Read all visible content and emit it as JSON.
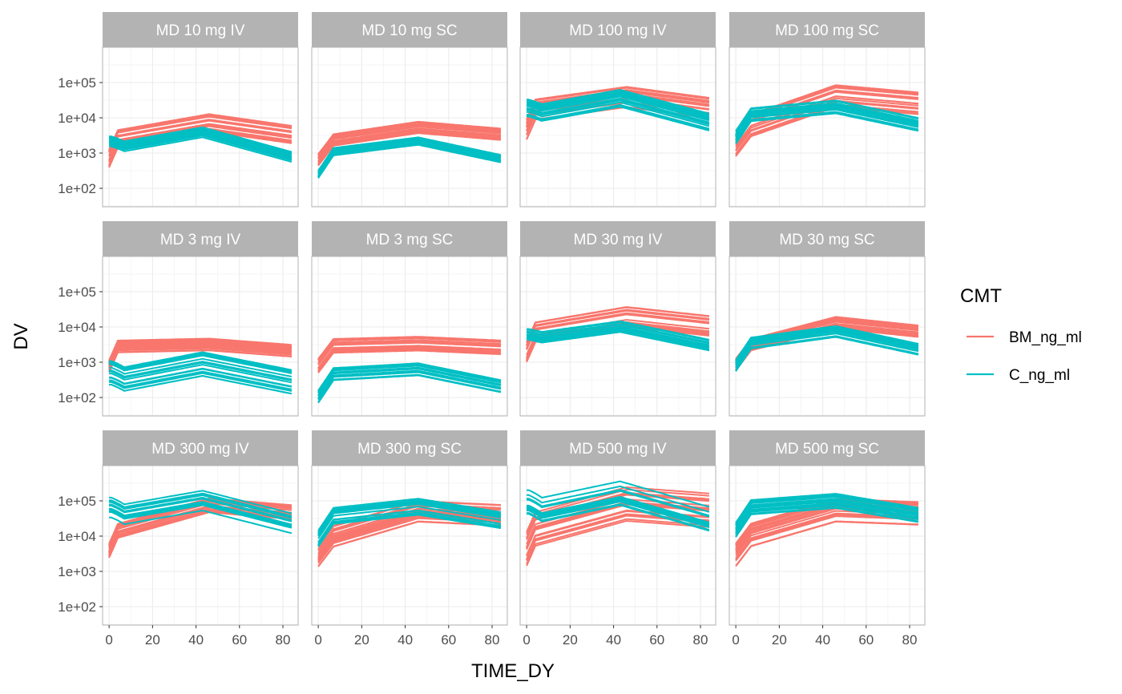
{
  "chart_data": {
    "type": "line",
    "facet_layout": {
      "rows": 3,
      "cols": 4
    },
    "xlabel": "TIME_DY",
    "ylabel": "DV",
    "x_ticks": [
      0,
      20,
      40,
      60,
      80
    ],
    "xlim": [
      -3,
      87
    ],
    "y_scale": "log10",
    "y_ticks": [
      100,
      1000,
      10000,
      100000
    ],
    "y_tick_labels": [
      "1e+02",
      "1e+03",
      "1e+04",
      "1e+05"
    ],
    "ylim": [
      30,
      1000000
    ],
    "grid": true,
    "legend": {
      "title": "CMT",
      "position": "right",
      "entries": [
        {
          "name": "BM_ng_ml",
          "color": "#F8766D"
        },
        {
          "name": "C_ng_ml",
          "color": "#00BFC4"
        }
      ]
    },
    "colors": {
      "BM_ng_ml": "#F8766D",
      "C_ng_ml": "#00BFC4",
      "strip": "#b3b3b3",
      "panel_border": "#b3b3b3",
      "grid": "#ebebeb"
    },
    "panels": [
      {
        "title": "MD 10 mg IV",
        "route": "IV",
        "series": [
          {
            "name": "BM_ng_ml",
            "start": 1200,
            "peak": 7500,
            "end": 3500,
            "low": 4000,
            "high": 14000,
            "n": 20
          },
          {
            "name": "C_ng_ml",
            "start": 2200,
            "trough": 1600,
            "peak": 4000,
            "end": 800,
            "low": 2800,
            "high": 5800,
            "n": 18
          }
        ]
      },
      {
        "title": "MD 10 mg SC",
        "route": "SC",
        "series": [
          {
            "name": "BM_ng_ml",
            "start": 1000,
            "peak": 5000,
            "end": 3200,
            "low": 3500,
            "high": 8000,
            "n": 20
          },
          {
            "name": "C_ng_ml",
            "start": 500,
            "trough": 900,
            "peak": 2200,
            "end": 700,
            "low": 1700,
            "high": 2800,
            "n": 18
          }
        ]
      },
      {
        "title": "MD 100 mg IV",
        "route": "IV",
        "series": [
          {
            "name": "BM_ng_ml",
            "start": 9000,
            "peak": 45000,
            "end": 22000,
            "low": 20000,
            "high": 80000,
            "n": 20
          },
          {
            "name": "C_ng_ml",
            "start": 20000,
            "trough": 15000,
            "peak": 38000,
            "end": 8000,
            "low": 20000,
            "high": 70000,
            "n": 18
          }
        ]
      },
      {
        "title": "MD 100 mg SC",
        "route": "SC",
        "series": [
          {
            "name": "BM_ng_ml",
            "start": 3000,
            "peak": 45000,
            "end": 28000,
            "low": 20000,
            "high": 90000,
            "n": 20
          },
          {
            "name": "C_ng_ml",
            "start": 6000,
            "trough": 9000,
            "peak": 22000,
            "end": 7000,
            "low": 12000,
            "high": 32000,
            "n": 18
          }
        ]
      },
      {
        "title": "MD 3 mg IV",
        "route": "IV",
        "series": [
          {
            "name": "BM_ng_ml",
            "start": 1200,
            "peak": 3000,
            "end": 2000,
            "low": 2000,
            "high": 5000,
            "n": 20
          },
          {
            "name": "C_ng_ml",
            "start": 450,
            "trough": 300,
            "peak": 800,
            "end": 250,
            "low": 400,
            "high": 2000,
            "n": 18
          }
        ]
      },
      {
        "title": "MD 3 mg SC",
        "route": "SC",
        "series": [
          {
            "name": "BM_ng_ml",
            "start": 1100,
            "peak": 2800,
            "end": 2200,
            "low": 2000,
            "high": 5500,
            "n": 20
          },
          {
            "name": "C_ng_ml",
            "start": 200,
            "trough": 250,
            "peak": 600,
            "end": 200,
            "low": 400,
            "high": 1000,
            "n": 18
          }
        ]
      },
      {
        "title": "MD 30 mg IV",
        "route": "IV",
        "series": [
          {
            "name": "BM_ng_ml",
            "start": 3000,
            "peak": 18000,
            "end": 10000,
            "low": 10000,
            "high": 38000,
            "n": 20
          },
          {
            "name": "C_ng_ml",
            "start": 6000,
            "trough": 5000,
            "peak": 10000,
            "end": 3000,
            "low": 7000,
            "high": 15000,
            "n": 18
          }
        ]
      },
      {
        "title": "MD 30 mg SC",
        "route": "SC",
        "series": [
          {
            "name": "BM_ng_ml",
            "start": 1500,
            "peak": 14000,
            "end": 8000,
            "low": 9000,
            "high": 20000,
            "n": 20
          },
          {
            "name": "C_ng_ml",
            "start": 1500,
            "trough": 2500,
            "peak": 7000,
            "end": 2200,
            "low": 4500,
            "high": 11000,
            "n": 18
          }
        ]
      },
      {
        "title": "MD 300 mg IV",
        "route": "IV",
        "series": [
          {
            "name": "BM_ng_ml",
            "start": 6000,
            "peak": 70000,
            "end": 45000,
            "low": 45000,
            "high": 130000,
            "n": 20
          },
          {
            "name": "C_ng_ml",
            "start": 70000,
            "trough": 45000,
            "peak": 110000,
            "end": 25000,
            "low": 50000,
            "high": 200000,
            "n": 18
          }
        ]
      },
      {
        "title": "MD 300 mg SC",
        "route": "SC",
        "series": [
          {
            "name": "BM_ng_ml",
            "start": 4000,
            "peak": 45000,
            "end": 35000,
            "low": 25000,
            "high": 110000,
            "n": 20
          },
          {
            "name": "C_ng_ml",
            "start": 15000,
            "trough": 25000,
            "peak": 60000,
            "end": 25000,
            "low": 40000,
            "high": 120000,
            "n": 18
          }
        ]
      },
      {
        "title": "MD 500 mg IV",
        "route": "IV",
        "series": [
          {
            "name": "BM_ng_ml",
            "start": 8000,
            "peak": 90000,
            "end": 60000,
            "low": 25000,
            "high": 250000,
            "n": 20
          },
          {
            "name": "C_ng_ml",
            "start": 90000,
            "trough": 55000,
            "peak": 160000,
            "end": 30000,
            "low": 70000,
            "high": 380000,
            "n": 18
          }
        ]
      },
      {
        "title": "MD 500 mg SC",
        "route": "SC",
        "series": [
          {
            "name": "BM_ng_ml",
            "start": 5000,
            "peak": 55000,
            "end": 45000,
            "low": 25000,
            "high": 120000,
            "n": 20
          },
          {
            "name": "C_ng_ml",
            "start": 30000,
            "trough": 40000,
            "peak": 100000,
            "end": 40000,
            "low": 60000,
            "high": 200000,
            "n": 18
          }
        ]
      }
    ]
  }
}
